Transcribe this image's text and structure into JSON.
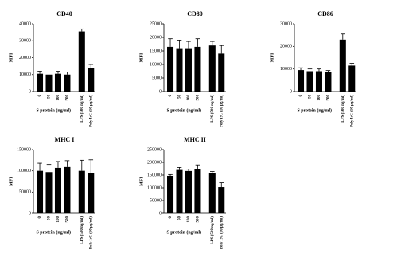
{
  "chart_data": [
    {
      "type": "bar",
      "title": "CD40",
      "ylabel": "MFI",
      "xlabel": "S protein (ng/ml)",
      "color": "#000000",
      "categories": [
        "0",
        "50",
        "100",
        "500",
        "LPS (500 ng/ml)",
        "Poly I:C (10 µg/ml)"
      ],
      "values": [
        10500,
        10000,
        10500,
        10000,
        35500,
        14000
      ],
      "errors": [
        1500,
        1500,
        1500,
        1500,
        1500,
        2000
      ],
      "ylim": [
        0,
        40000
      ],
      "yticks": [
        0,
        10000,
        20000,
        30000,
        40000
      ]
    },
    {
      "type": "bar",
      "title": "CD80",
      "ylabel": "MFI",
      "xlabel": "S protein (ng/ml)",
      "color": "#000000",
      "categories": [
        "0",
        "50",
        "100",
        "500",
        "LPS (500 ng/ml)",
        "Poly I:C (10 µg/ml)"
      ],
      "values": [
        16500,
        16000,
        16000,
        16500,
        17000,
        14000
      ],
      "errors": [
        3000,
        3000,
        2500,
        3000,
        1500,
        3000
      ],
      "ylim": [
        0,
        25000
      ],
      "yticks": [
        0,
        5000,
        10000,
        15000,
        20000,
        25000
      ]
    },
    {
      "type": "bar",
      "title": "CD86",
      "ylabel": "MFI",
      "xlabel": "S protein (ng/ml)",
      "color": "#000000",
      "categories": [
        "0",
        "50",
        "100",
        "500",
        "LPS (500 ng/ml)",
        "Poly I:C (10 µg/ml)"
      ],
      "values": [
        9500,
        9000,
        9000,
        8500,
        23000,
        11500
      ],
      "errors": [
        1000,
        1000,
        1000,
        800,
        2500,
        1000
      ],
      "ylim": [
        0,
        30000
      ],
      "yticks": [
        0,
        10000,
        20000,
        30000
      ]
    },
    {
      "type": "bar",
      "title": "MHC I",
      "ylabel": "MFI",
      "xlabel": "S protein (ng/ml)",
      "color": "#000000",
      "categories": [
        "0",
        "50",
        "100",
        "500",
        "LPS (500 ng/ml)",
        "Poly I:C (10 µg/ml)"
      ],
      "values": [
        100000,
        97000,
        107000,
        109000,
        100000,
        94000
      ],
      "errors": [
        18000,
        18000,
        15000,
        15000,
        25000,
        32000
      ],
      "ylim": [
        0,
        150000
      ],
      "yticks": [
        0,
        50000,
        100000,
        150000
      ]
    },
    {
      "type": "bar",
      "title": "MHC II",
      "ylabel": "MFI",
      "xlabel": "S protein (ng/ml)",
      "color": "#000000",
      "categories": [
        "0",
        "50",
        "100",
        "500",
        "LPS (500 ng/ml)",
        "Poly I:C (10 µg/ml)"
      ],
      "values": [
        147000,
        170000,
        166000,
        173000,
        158000,
        103000
      ],
      "errors": [
        5000,
        10000,
        7000,
        17000,
        6000,
        17000
      ],
      "ylim": [
        0,
        250000
      ],
      "yticks": [
        0,
        50000,
        100000,
        150000,
        200000,
        250000
      ]
    }
  ]
}
